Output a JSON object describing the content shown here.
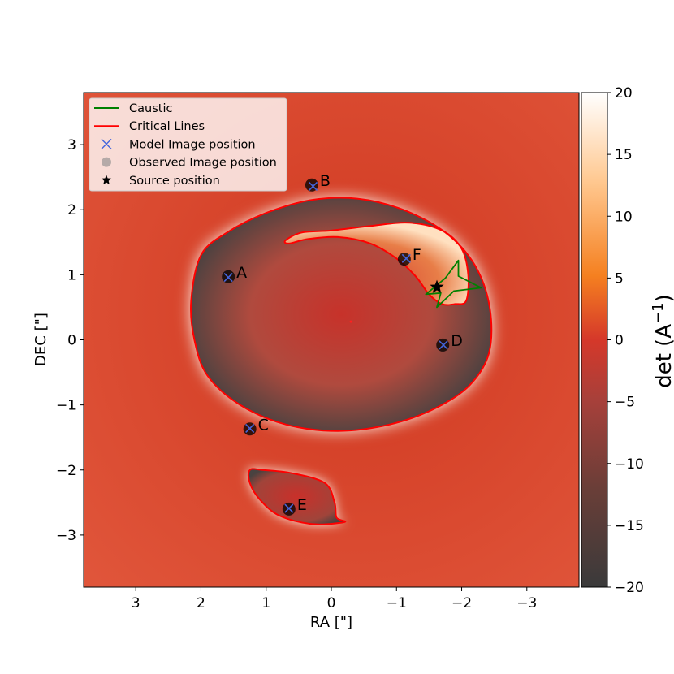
{
  "chart_data": {
    "type": "heatmap",
    "xlabel": "RA [\"]",
    "ylabel": "DEC [\"]",
    "xlim": [
      3.8,
      -3.8
    ],
    "ylim": [
      -3.8,
      3.8
    ],
    "x_ticks": [
      3,
      2,
      1,
      0,
      -1,
      -2,
      -3
    ],
    "x_tick_labels": [
      "3",
      "2",
      "1",
      "0",
      "−1",
      "−2",
      "−3"
    ],
    "y_ticks": [
      3,
      2,
      1,
      0,
      -1,
      -2,
      -3
    ],
    "y_tick_labels": [
      "3",
      "2",
      "1",
      "0",
      "−1",
      "−2",
      "−3"
    ],
    "colorbar": {
      "label": "det  (A",
      "label_sup": "−1",
      "label_close": ")",
      "range": [
        -20,
        20
      ],
      "ticks": [
        20,
        15,
        10,
        5,
        0,
        -5,
        -10,
        -15,
        -20
      ],
      "tick_labels": [
        "20",
        "15",
        "10",
        "5",
        "0",
        "−5",
        "−10",
        "−15",
        "−20"
      ],
      "colormap": "gist_heat-like (dark grey → red → orange → white)"
    },
    "legend": {
      "placement": "upper-left",
      "entries": [
        {
          "label": "Caustic",
          "marker": "line",
          "color": "#008000"
        },
        {
          "label": "Critical Lines",
          "marker": "line",
          "color": "#ff0000"
        },
        {
          "label": "Model Image position",
          "marker": "x",
          "color": "#4466dd"
        },
        {
          "label": "Observed Image position",
          "marker": "circle",
          "color": "#888888"
        },
        {
          "label": "Source position",
          "marker": "star",
          "color": "#000000"
        }
      ]
    },
    "observed_images": [
      {
        "label": "A",
        "x": 1.58,
        "y": 0.97
      },
      {
        "label": "B",
        "x": 0.3,
        "y": 2.38
      },
      {
        "label": "C",
        "x": 1.25,
        "y": -1.37
      },
      {
        "label": "D",
        "x": -1.71,
        "y": -0.08
      },
      {
        "label": "E",
        "x": 0.65,
        "y": -2.6
      },
      {
        "label": "F",
        "x": -1.12,
        "y": 1.24
      }
    ],
    "model_images": [
      {
        "x": 1.58,
        "y": 0.96
      },
      {
        "x": 0.28,
        "y": 2.36
      },
      {
        "x": 1.25,
        "y": -1.36
      },
      {
        "x": -1.72,
        "y": -0.08
      },
      {
        "x": 0.65,
        "y": -2.59
      },
      {
        "x": -1.15,
        "y": 1.25
      }
    ],
    "source_position": {
      "x": -1.62,
      "y": 0.81
    },
    "lens_center": {
      "x": -0.3,
      "y": 0.28
    },
    "critical_lines": [
      {
        "name": "outer",
        "points": [
          [
            2.0,
            1.3
          ],
          [
            1.6,
            1.65
          ],
          [
            1.0,
            1.95
          ],
          [
            0.3,
            2.15
          ],
          [
            -0.4,
            2.17
          ],
          [
            -1.1,
            2.0
          ],
          [
            -1.75,
            1.65
          ],
          [
            -2.2,
            1.15
          ],
          [
            -2.43,
            0.5
          ],
          [
            -2.42,
            -0.2
          ],
          [
            -2.12,
            -0.7
          ],
          [
            -1.6,
            -1.05
          ],
          [
            -0.9,
            -1.3
          ],
          [
            -0.1,
            -1.4
          ],
          [
            0.7,
            -1.3
          ],
          [
            1.4,
            -1.0
          ],
          [
            1.9,
            -0.55
          ],
          [
            2.1,
            0.0
          ],
          [
            2.15,
            0.6
          ]
        ]
      },
      {
        "name": "inner-crescent",
        "points": [
          [
            0.7,
            1.53
          ],
          [
            0.45,
            1.65
          ],
          [
            0.0,
            1.68
          ],
          [
            -0.6,
            1.75
          ],
          [
            -1.2,
            1.8
          ],
          [
            -1.7,
            1.68
          ],
          [
            -2.0,
            1.4
          ],
          [
            -2.1,
            1.0
          ],
          [
            -2.07,
            0.6
          ],
          [
            -1.9,
            0.55
          ],
          [
            -1.7,
            0.55
          ],
          [
            -1.5,
            0.7
          ],
          [
            -1.3,
            0.97
          ],
          [
            -1.0,
            1.25
          ],
          [
            -0.6,
            1.48
          ],
          [
            -0.1,
            1.58
          ],
          [
            0.35,
            1.55
          ],
          [
            0.65,
            1.48
          ]
        ]
      },
      {
        "name": "southern",
        "points": [
          [
            1.05,
            -2.0
          ],
          [
            0.6,
            -2.05
          ],
          [
            0.1,
            -2.2
          ],
          [
            -0.05,
            -2.5
          ],
          [
            -0.08,
            -2.73
          ],
          [
            -0.2,
            -2.8
          ],
          [
            0.3,
            -2.83
          ],
          [
            0.8,
            -2.7
          ],
          [
            1.1,
            -2.45
          ],
          [
            1.25,
            -2.2
          ],
          [
            1.25,
            -2.0
          ]
        ]
      }
    ],
    "caustic": {
      "points": [
        [
          -1.45,
          0.7
        ],
        [
          -1.75,
          0.95
        ],
        [
          -1.95,
          1.22
        ],
        [
          -1.95,
          0.98
        ],
        [
          -2.3,
          0.8
        ],
        [
          -1.88,
          0.75
        ],
        [
          -1.62,
          0.5
        ],
        [
          -1.68,
          0.72
        ],
        [
          -1.45,
          0.7
        ]
      ]
    }
  }
}
